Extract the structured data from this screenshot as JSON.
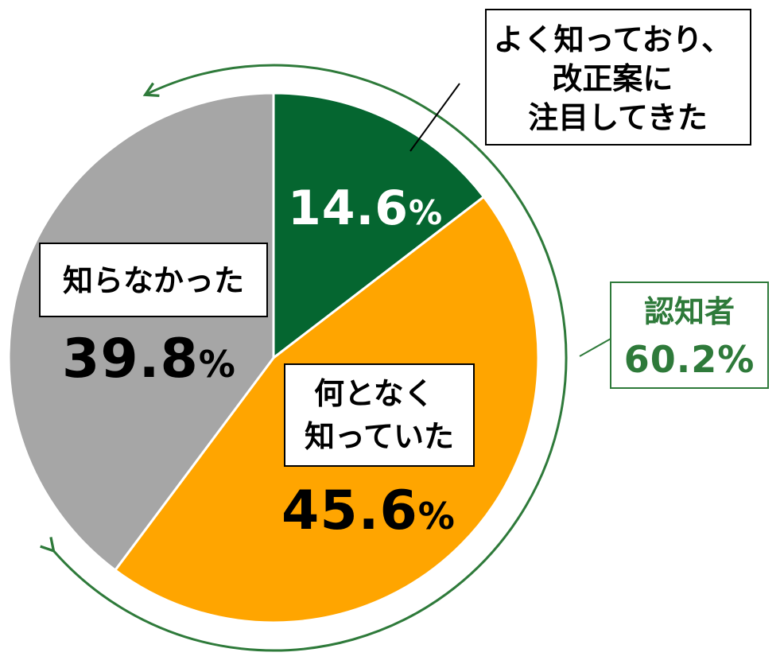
{
  "chart_data": {
    "type": "pie",
    "categories": [
      "よく知っており、改正案に注目してきた",
      "何となく知っていた",
      "知らなかった"
    ],
    "values": [
      14.6,
      45.6,
      39.8
    ],
    "unit": "%",
    "colors": [
      "#056630",
      "#FFA500",
      "#A6A6A6"
    ],
    "slices": [
      {
        "label_lines": [
          "よく知っており、",
          "改正案に",
          "注目してきた"
        ],
        "value_text": "14.6",
        "unit_text": "%"
      },
      {
        "label_lines": [
          "何となく",
          "知っていた"
        ],
        "value_text": "45.6",
        "unit_text": "%"
      },
      {
        "label_lines": [
          "知らなかった"
        ],
        "value_text": "39.8",
        "unit_text": "%"
      }
    ],
    "summary": {
      "label": "認知者",
      "value_text": "60.2",
      "unit_text": "%",
      "value": 60.2,
      "color": "#2E7A3A"
    }
  }
}
